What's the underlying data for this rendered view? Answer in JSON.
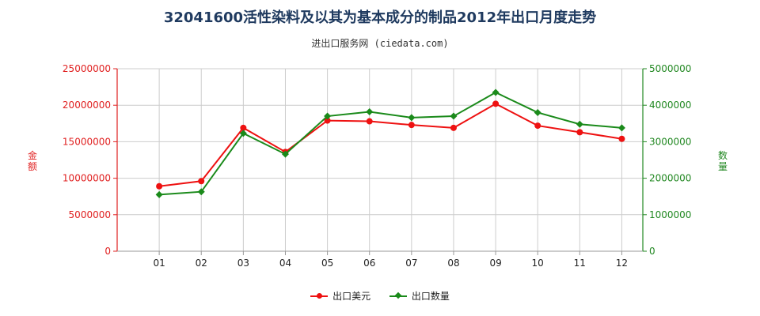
{
  "chart_data": {
    "type": "line",
    "title": "32041600活性染料及以其为基本成分的制品2012年出口月度走势",
    "subtitle": "进出口服务网 (ciedata.com)",
    "categories": [
      "01",
      "02",
      "03",
      "04",
      "05",
      "06",
      "07",
      "08",
      "09",
      "10",
      "11",
      "12"
    ],
    "y_left": {
      "label": "金额",
      "ylim": [
        0,
        25000000
      ],
      "ticks": [
        "0",
        "5000000",
        "10000000",
        "15000000",
        "20000000",
        "25000000"
      ],
      "color": "#e02020"
    },
    "y_right": {
      "label": "数量",
      "ylim": [
        0,
        5000000
      ],
      "ticks": [
        "0",
        "1000000",
        "2000000",
        "3000000",
        "4000000",
        "5000000"
      ],
      "color": "#228822"
    },
    "series": [
      {
        "name": "出口美元",
        "axis": "left",
        "color": "#ee1111",
        "marker": "circle",
        "values": [
          8900000,
          9600000,
          16900000,
          13600000,
          17900000,
          17800000,
          17300000,
          16900000,
          20200000,
          17200000,
          16300000,
          15400000
        ]
      },
      {
        "name": "出口数量",
        "axis": "right",
        "color": "#1a8a1a",
        "marker": "diamond",
        "values": [
          1550000,
          1630000,
          3230000,
          2660000,
          3700000,
          3820000,
          3660000,
          3700000,
          4350000,
          3800000,
          3480000,
          3380000
        ]
      }
    ],
    "grid": true,
    "legend_position": "bottom"
  }
}
